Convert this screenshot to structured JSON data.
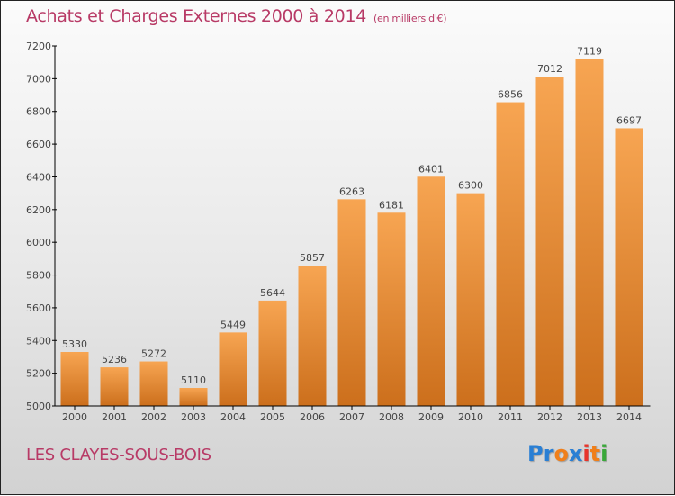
{
  "header": {
    "title": "Achats et Charges Externes 2000 à 2014",
    "unit": "(en milliers d'€)"
  },
  "footer": {
    "city": "LES CLAYES-SOUS-BOIS",
    "logo_letters": [
      {
        "ch": "P",
        "color": "#2a7fd4"
      },
      {
        "ch": "r",
        "color": "#2a7fd4"
      },
      {
        "ch": "o",
        "color": "#f07f1a"
      },
      {
        "ch": "x",
        "color": "#2a7fd4"
      },
      {
        "ch": "i",
        "color": "#e8342a"
      },
      {
        "ch": "t",
        "color": "#f07f1a"
      },
      {
        "ch": "i",
        "color": "#3aa83a"
      }
    ]
  },
  "colors": {
    "title": "#b83a66",
    "bar_top": "#f7a552",
    "bar_bottom": "#cc6f1c",
    "axis": "#000000"
  },
  "chart_data": {
    "type": "bar",
    "title": "Achats et Charges Externes 2000 à 2014",
    "subtitle": "(en milliers d'€)",
    "xlabel": "",
    "ylabel": "",
    "categories": [
      "2000",
      "2001",
      "2002",
      "2003",
      "2004",
      "2005",
      "2006",
      "2007",
      "2008",
      "2009",
      "2010",
      "2011",
      "2012",
      "2013",
      "2014"
    ],
    "values": [
      5330,
      5236,
      5272,
      5110,
      5449,
      5644,
      5857,
      6263,
      6181,
      6401,
      6300,
      6856,
      7012,
      7119,
      6697
    ],
    "ylim": [
      5000,
      7200
    ],
    "yticks": [
      5000,
      5200,
      5400,
      5600,
      5800,
      6000,
      6200,
      6400,
      6600,
      6800,
      7000,
      7200
    ],
    "grid": false,
    "legend": "none",
    "data_labels": true
  }
}
